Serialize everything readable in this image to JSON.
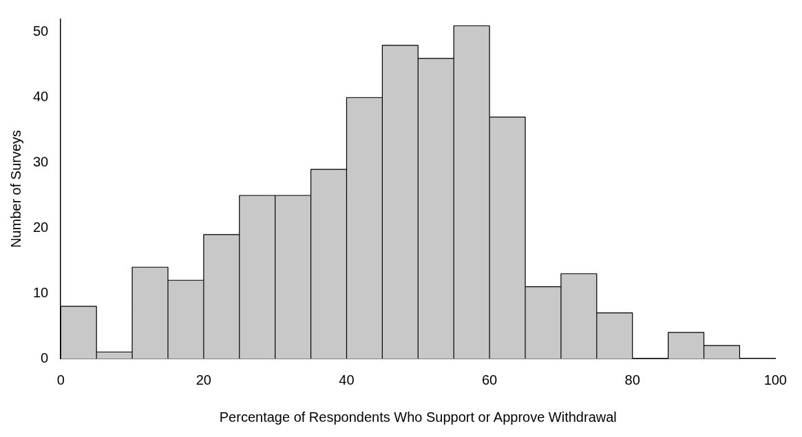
{
  "chart_data": {
    "type": "histogram",
    "xlabel": "Percentage of Respondents Who Support or Approve Withdrawal",
    "ylabel": "Number of Surveys",
    "bins": [
      0,
      5,
      10,
      15,
      20,
      25,
      30,
      35,
      40,
      45,
      50,
      55,
      60,
      65,
      70,
      75,
      80,
      85,
      90,
      95
    ],
    "values": [
      8,
      1,
      14,
      12,
      19,
      25,
      25,
      29,
      40,
      48,
      46,
      51,
      37,
      11,
      13,
      7,
      0,
      4,
      2
    ],
    "color": "#c8c8c8",
    "xlim": [
      0,
      100
    ],
    "xticks": [
      0,
      20,
      40,
      60,
      80,
      100
    ],
    "ylim": [
      0,
      52
    ],
    "yticks": [
      0,
      10,
      20,
      30,
      40,
      50
    ],
    "grid": false
  }
}
